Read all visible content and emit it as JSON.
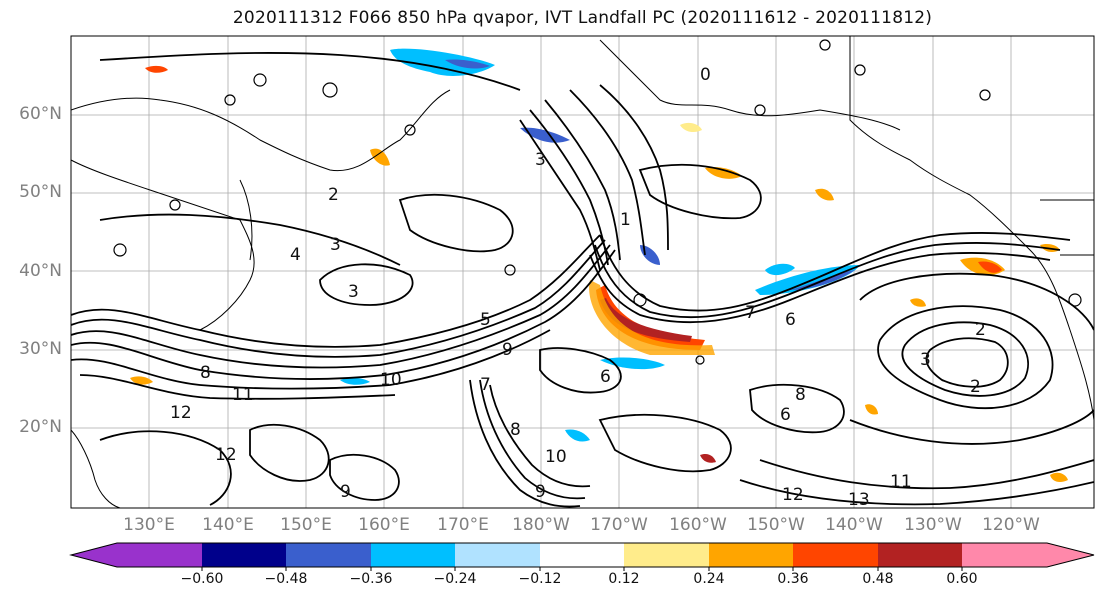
{
  "title": "2020111312 F066 850 hPa qvapor, IVT Landfall PC (2020111612 - 2020111812)",
  "lat_labels": [
    "60°N",
    "50°N",
    "40°N",
    "30°N",
    "20°N"
  ],
  "lon_labels": [
    "130°E",
    "140°E",
    "150°E",
    "160°E",
    "170°E",
    "180°W",
    "170°W",
    "160°W",
    "150°W",
    "140°W",
    "130°W",
    "120°W"
  ],
  "colorbar": {
    "colors": [
      "#9932cc",
      "#00008b",
      "#3a5fcd",
      "#00bfff",
      "#b0e2ff",
      "#ffffff",
      "#ffec8b",
      "#ffa500",
      "#ff4500",
      "#b22222",
      "#ff88aa"
    ],
    "tick_labels": [
      "−0.60",
      "−0.48",
      "−0.36",
      "−0.24",
      "−0.12",
      "0.12",
      "0.24",
      "0.36",
      "0.48",
      "0.60"
    ]
  },
  "contour_labels": [
    "3",
    "0",
    "1",
    "2",
    "3",
    "3",
    "4",
    "5",
    "6",
    "7",
    "8",
    "9",
    "10",
    "11",
    "12",
    "13",
    "6",
    "7",
    "8",
    "9",
    "10",
    "2",
    "3",
    "2",
    "11",
    "12",
    "12",
    "6",
    "8",
    "9"
  ]
}
